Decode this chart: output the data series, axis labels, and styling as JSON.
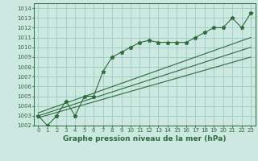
{
  "xlabel": "Graphe pression niveau de la mer (hPa)",
  "bg_color": "#cce8e0",
  "grid_color": "#99ccc0",
  "line_color": "#2d6b3c",
  "xlim": [
    -0.5,
    23.5
  ],
  "ylim": [
    1002,
    1014.5
  ],
  "yticks": [
    1002,
    1003,
    1004,
    1005,
    1006,
    1007,
    1008,
    1009,
    1010,
    1011,
    1012,
    1013,
    1014
  ],
  "xticks": [
    0,
    1,
    2,
    3,
    4,
    5,
    6,
    7,
    8,
    9,
    10,
    11,
    12,
    13,
    14,
    15,
    16,
    17,
    18,
    19,
    20,
    21,
    22,
    23
  ],
  "main_series": [
    1003.0,
    1002.0,
    1003.0,
    1004.5,
    1003.0,
    1005.0,
    1005.0,
    1007.5,
    1009.0,
    1009.5,
    1010.0,
    1010.5,
    1010.7,
    1010.5,
    1010.5,
    1010.5,
    1010.5,
    1011.0,
    1011.5,
    1012.0,
    1012.0,
    1013.0,
    1012.0,
    1013.5
  ],
  "trend_lines": [
    [
      1003.3,
      1011.0
    ],
    [
      1003.0,
      1010.0
    ],
    [
      1002.8,
      1009.0
    ]
  ],
  "xlabel_fontsize": 6.5,
  "tick_fontsize": 5.0
}
